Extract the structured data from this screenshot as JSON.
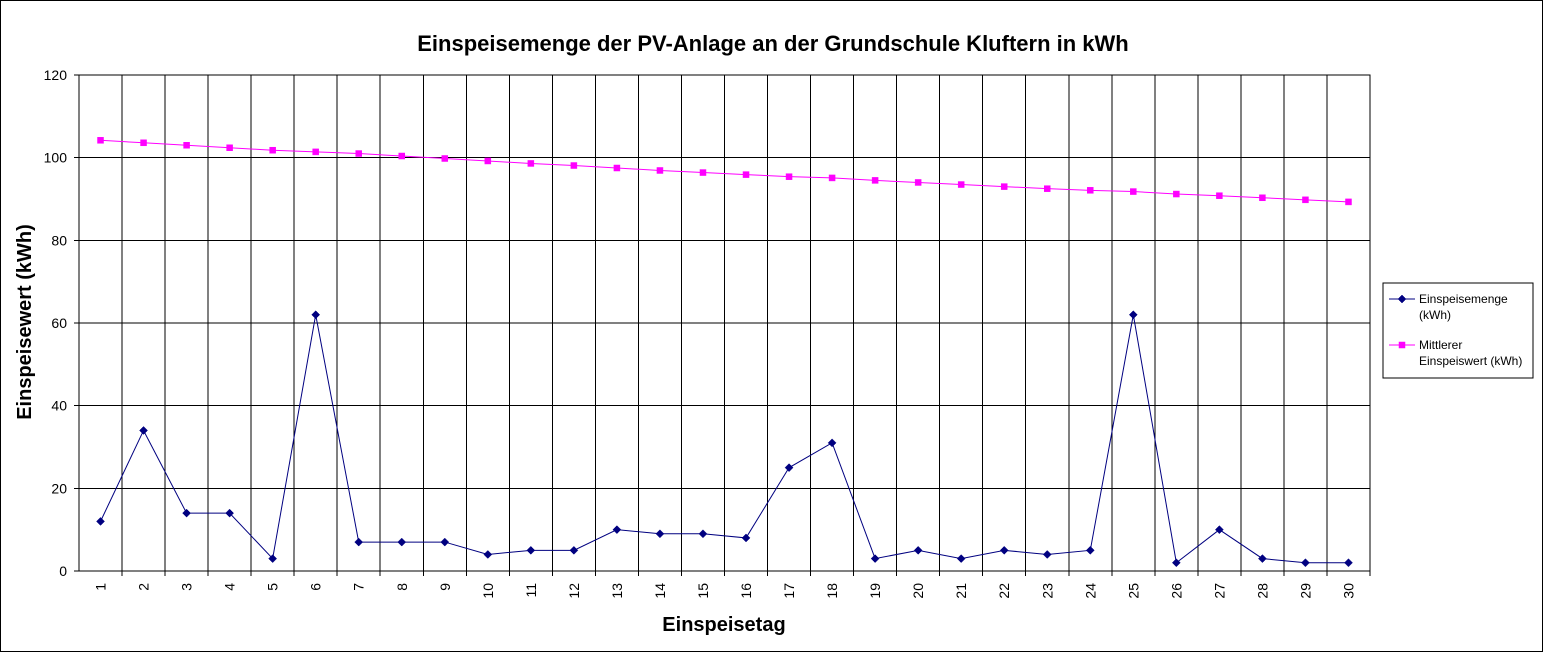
{
  "chart_data": {
    "type": "line",
    "title": "Einspeisemenge der PV-Anlage an der Grundschule Kluftern in kWh",
    "xlabel": "Einspeisetag",
    "ylabel": "Einspeisewert  (kWh)",
    "ylim": [
      0,
      120
    ],
    "ytick_step": 20,
    "grid": true,
    "legend_position": "right",
    "x": [
      1,
      2,
      3,
      4,
      5,
      6,
      7,
      8,
      9,
      10,
      11,
      12,
      13,
      14,
      15,
      16,
      17,
      18,
      19,
      20,
      21,
      22,
      23,
      24,
      25,
      26,
      27,
      28,
      29,
      30
    ],
    "series": [
      {
        "name_lines": [
          "Einspeisemenge",
          "(kWh)"
        ],
        "color": "#000080",
        "marker": "diamond",
        "values": [
          12,
          34,
          14,
          14,
          3,
          62,
          7,
          7,
          7,
          4,
          5,
          5,
          10,
          9,
          9,
          8,
          25,
          31,
          3,
          5,
          3,
          5,
          4,
          5,
          62,
          2,
          10,
          3,
          2,
          2
        ]
      },
      {
        "name_lines": [
          "Mittlerer",
          "Einspeiswert (kWh)"
        ],
        "color": "#ff00ff",
        "marker": "square",
        "values": [
          104.2,
          103.6,
          103.0,
          102.4,
          101.8,
          101.4,
          101.0,
          100.4,
          99.8,
          99.2,
          98.6,
          98.1,
          97.5,
          96.9,
          96.4,
          95.9,
          95.4,
          95.1,
          94.5,
          94.0,
          93.5,
          93.0,
          92.5,
          92.1,
          91.8,
          91.2,
          90.8,
          90.3,
          89.8,
          89.3
        ]
      }
    ]
  }
}
